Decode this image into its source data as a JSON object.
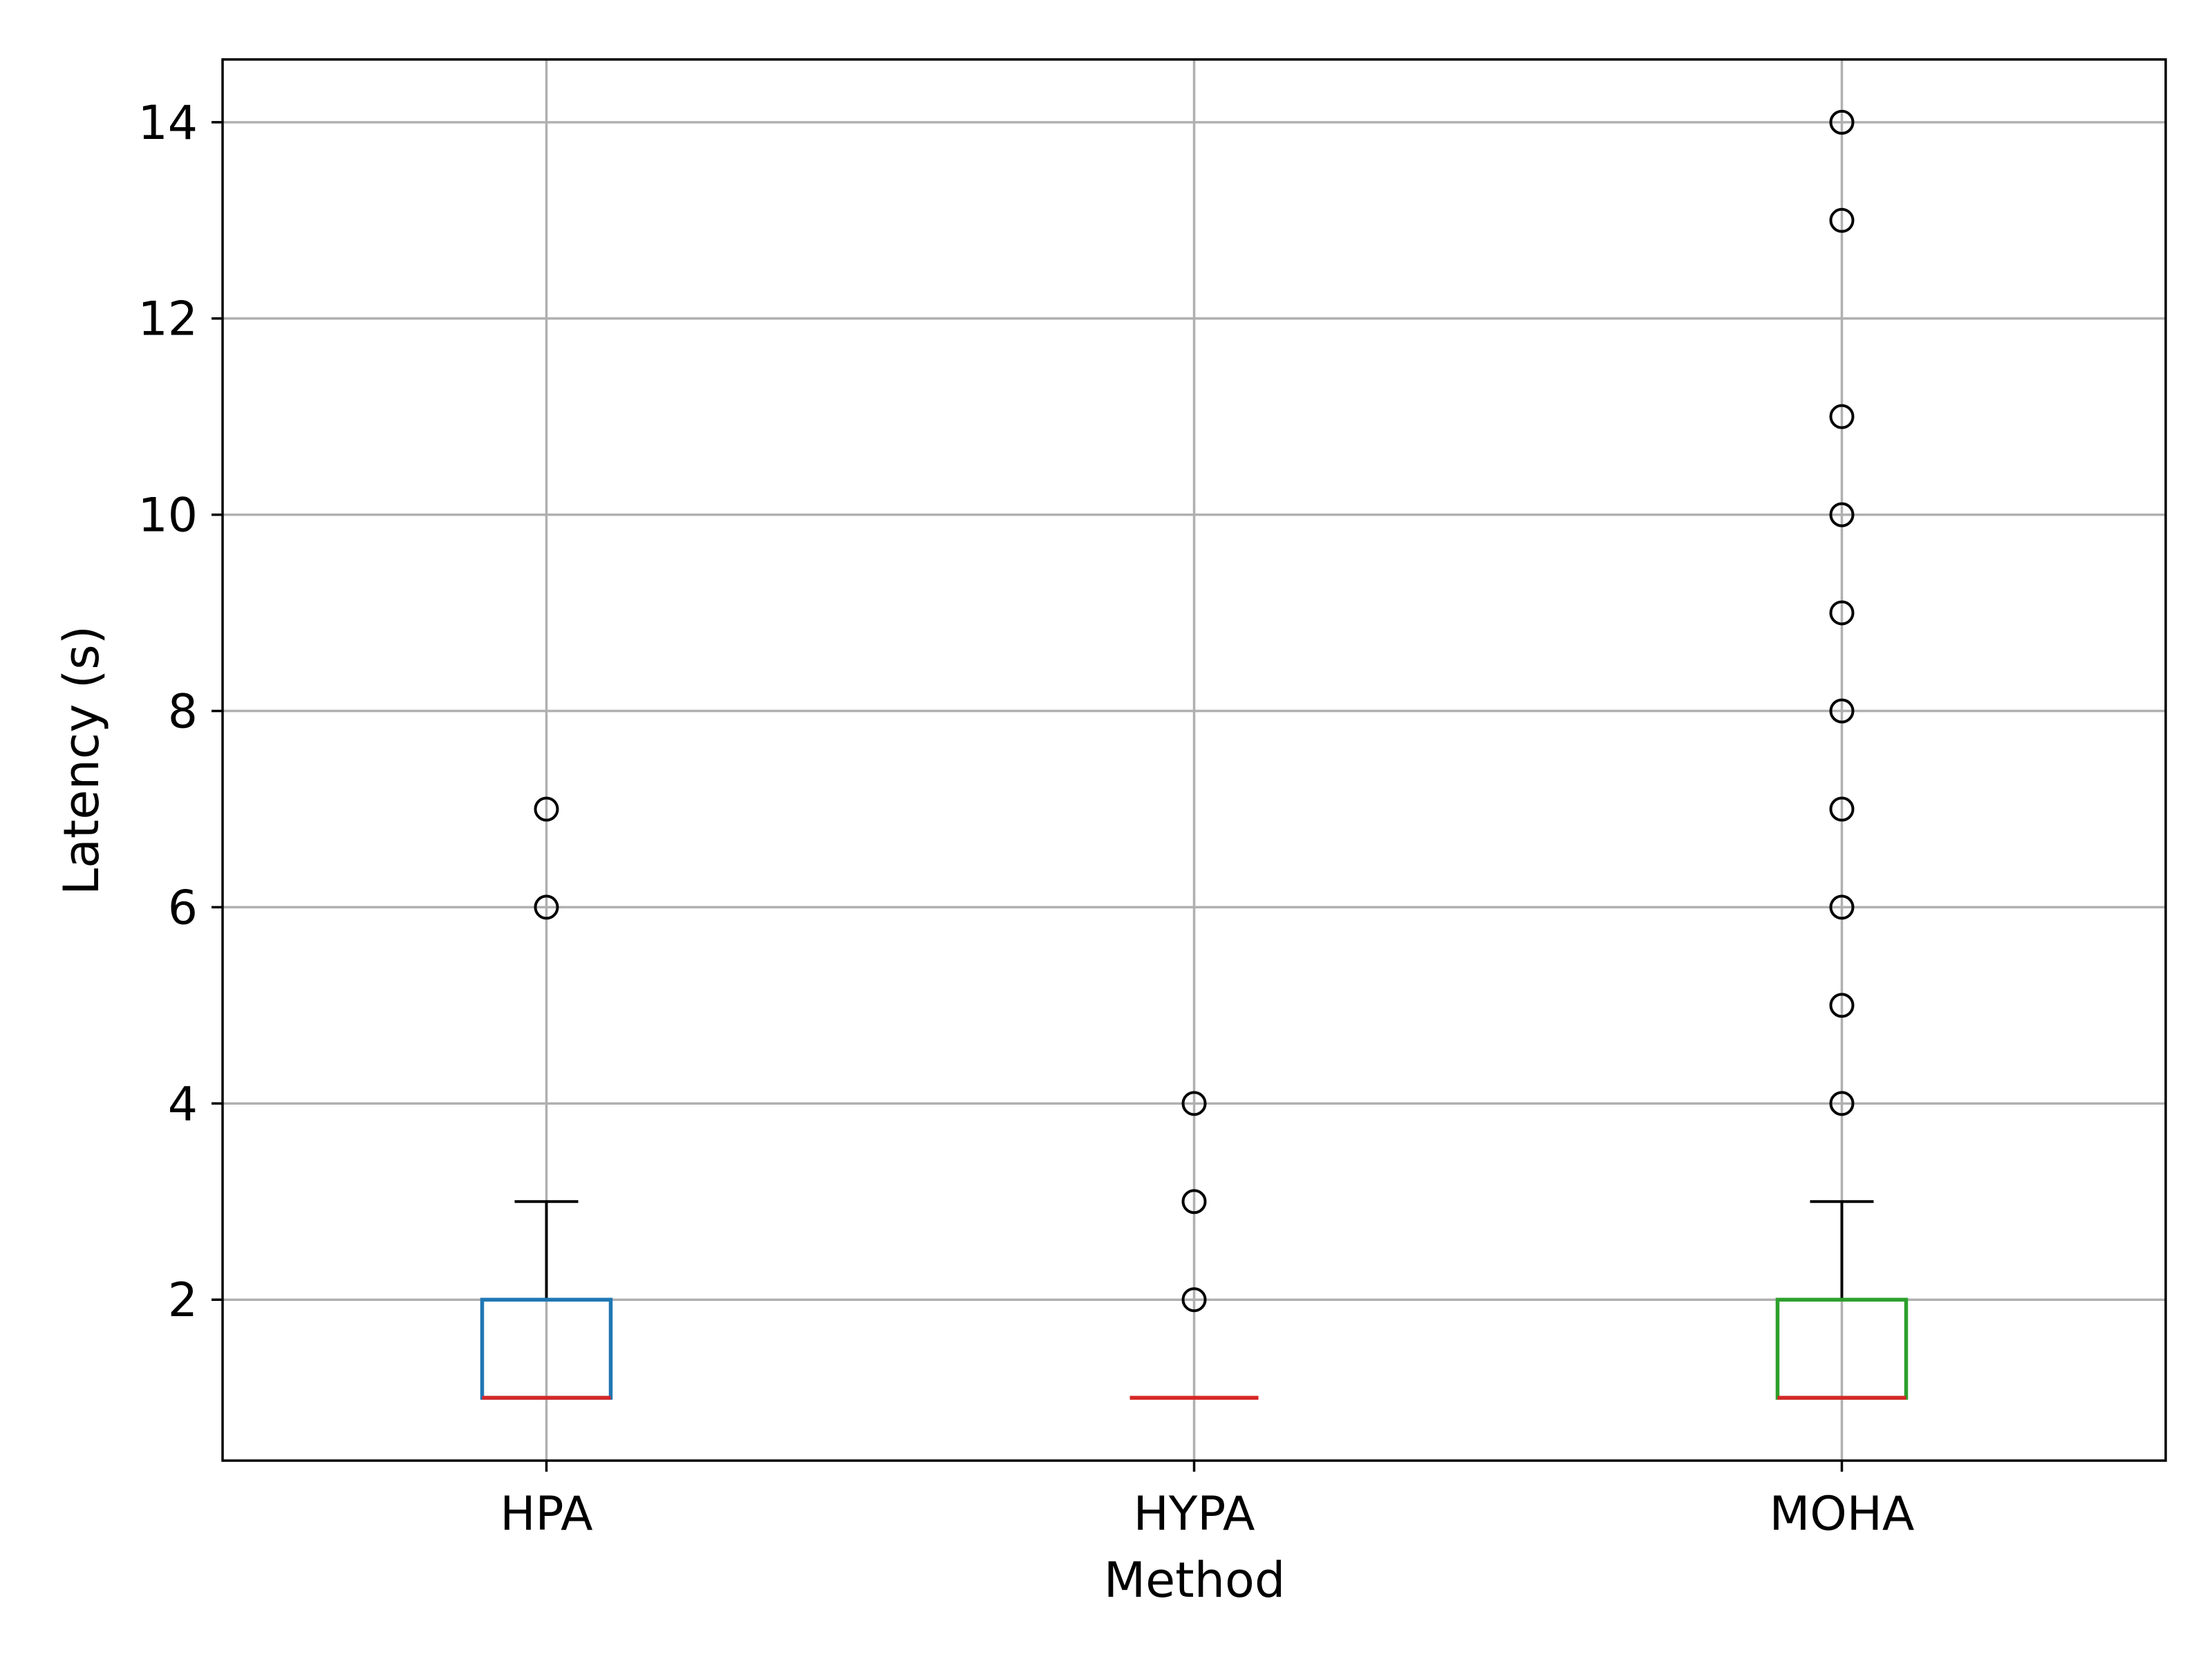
{
  "chart_data": {
    "type": "box",
    "title": "",
    "xlabel": "Method",
    "ylabel": "Latency (s)",
    "categories": [
      "HPA",
      "HYPA",
      "MOHA"
    ],
    "yticks": [
      2,
      4,
      6,
      8,
      10,
      12,
      14
    ],
    "ylim": [
      0.36,
      14.64
    ],
    "grid": true,
    "legend": "none",
    "boxes": [
      {
        "category": "HPA",
        "q1": 1,
        "median": 1,
        "q3": 2,
        "whisker_low": 1,
        "whisker_high": 3,
        "outliers": [
          6,
          7
        ],
        "color": "#1f77b4"
      },
      {
        "category": "HYPA",
        "q1": 1,
        "median": 1,
        "q3": 1,
        "whisker_low": 1,
        "whisker_high": 1,
        "outliers": [
          2,
          3,
          4
        ],
        "color": "#ff7f0e"
      },
      {
        "category": "MOHA",
        "q1": 1,
        "median": 1,
        "q3": 2,
        "whisker_low": 1,
        "whisker_high": 3,
        "outliers": [
          4,
          5,
          6,
          7,
          8,
          9,
          10,
          11,
          13,
          14
        ],
        "color": "#2ca02c"
      }
    ],
    "median_color": "#d62728",
    "whisker_color": "#000000",
    "grid_color": "#b0b0b0"
  }
}
